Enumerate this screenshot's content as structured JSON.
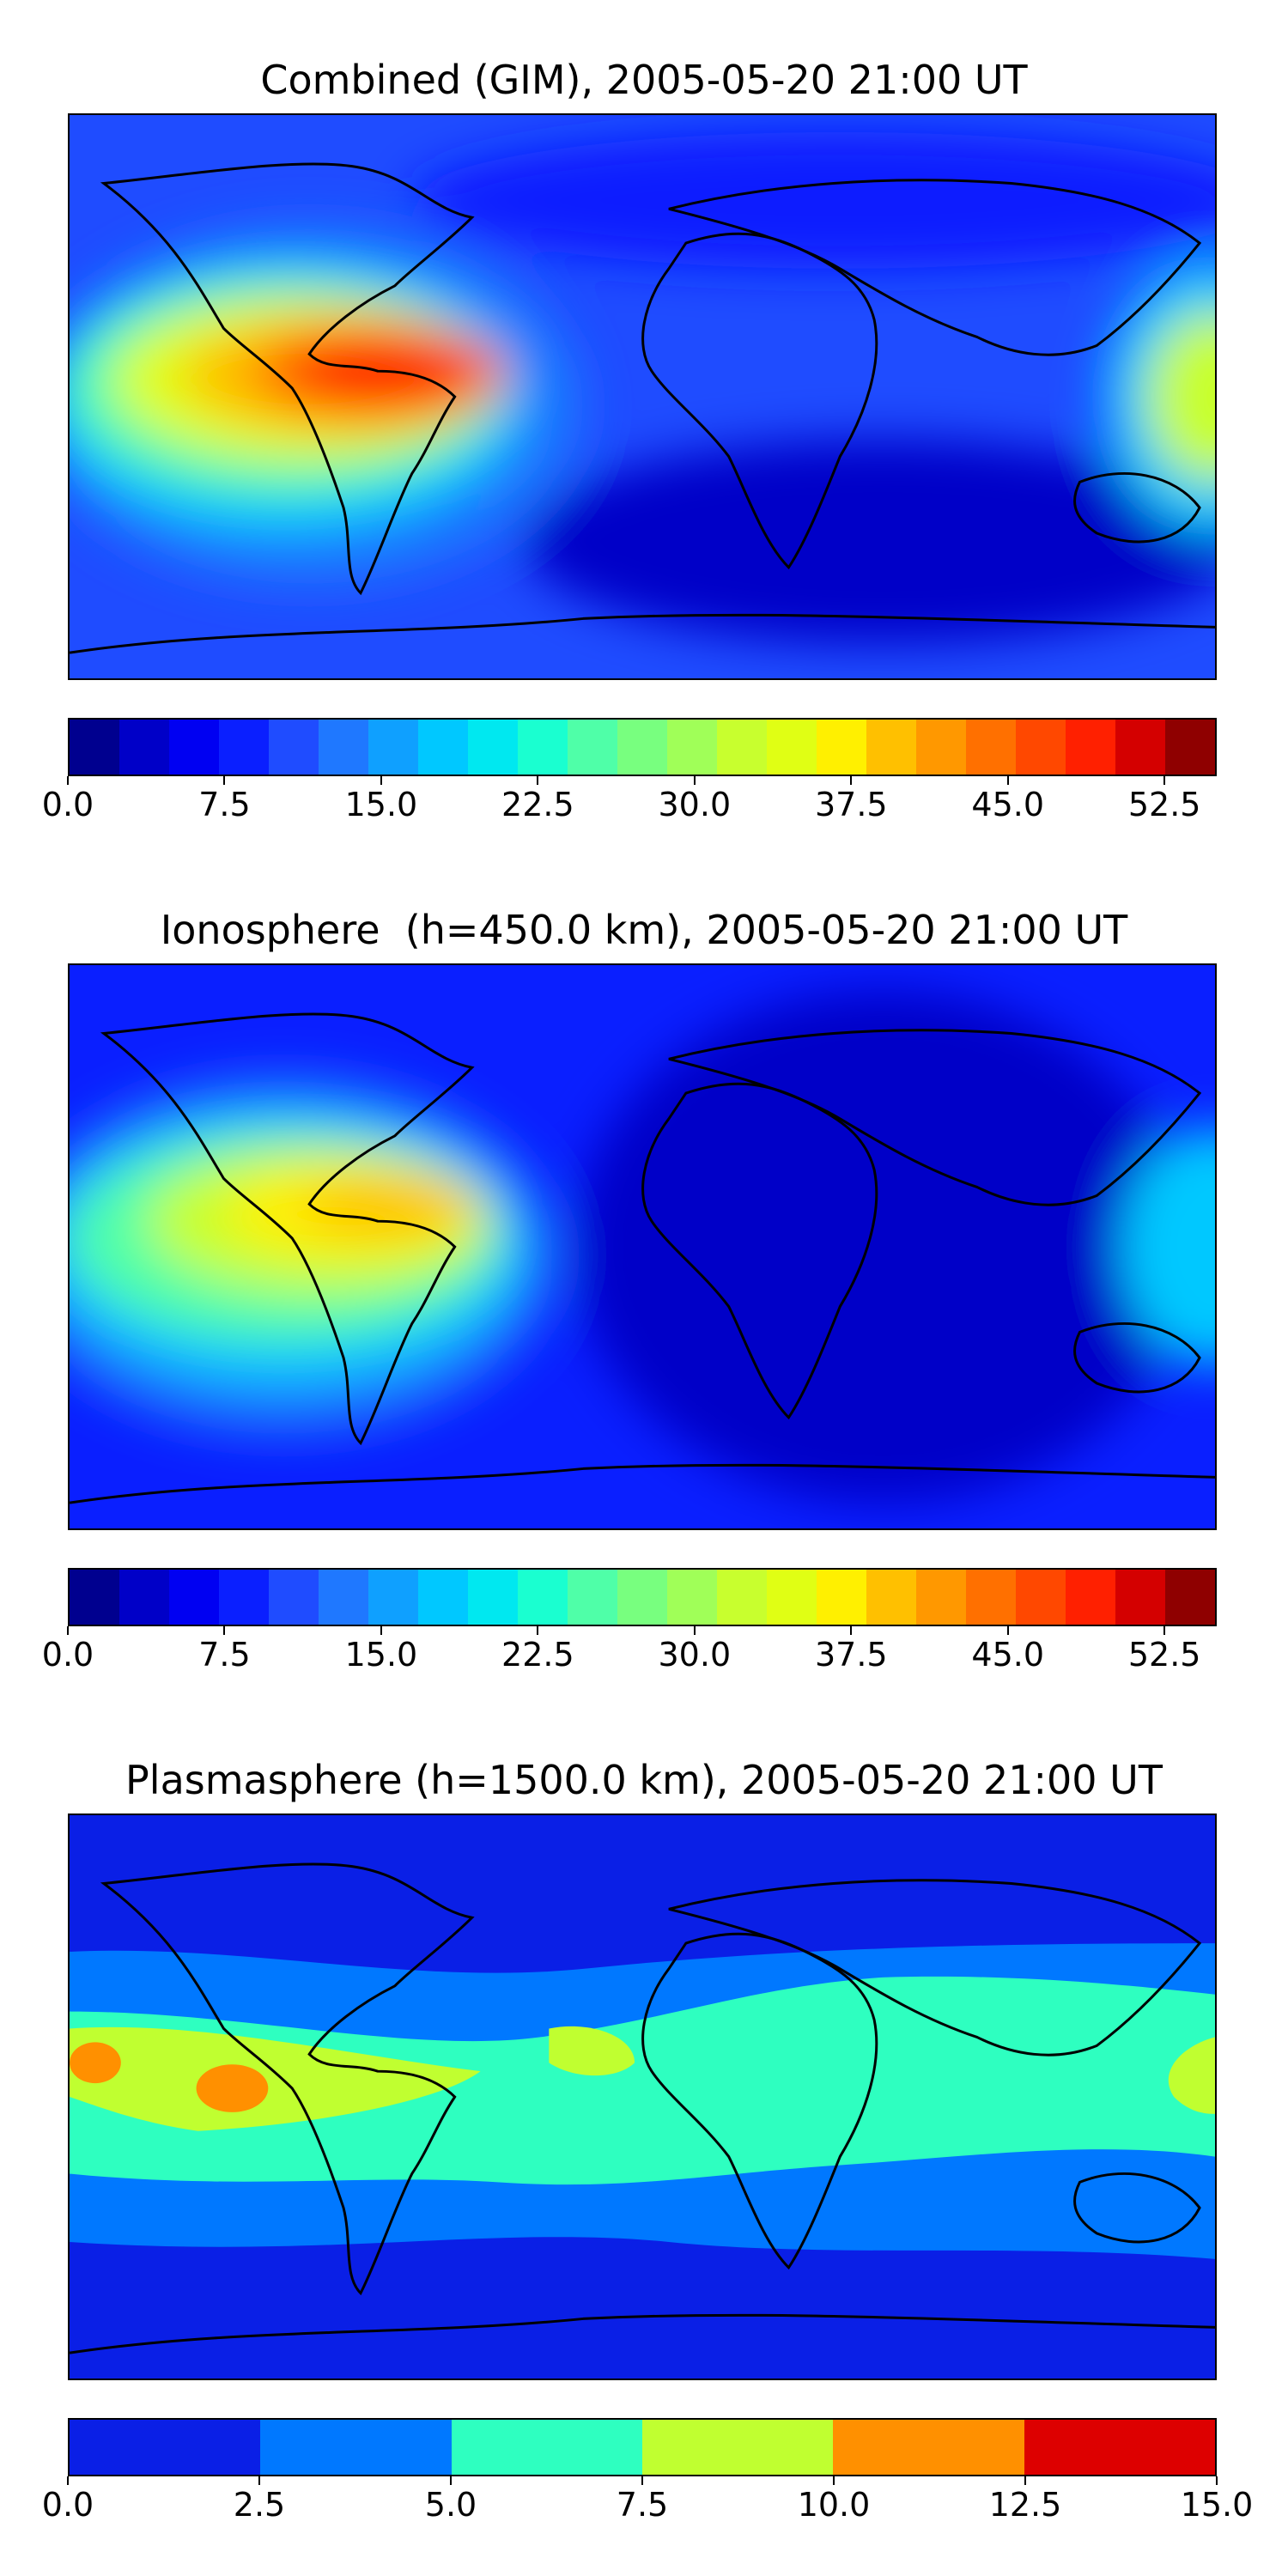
{
  "chart_data": [
    {
      "type": "heatmap",
      "title": "Combined (GIM), 2005-05-20 21:00 UT",
      "colorbar": {
        "min": 0.0,
        "max": 55.0,
        "step": 2.5,
        "ticks": [
          "0.0",
          "7.5",
          "15.0",
          "22.5",
          "30.0",
          "37.5",
          "45.0",
          "52.5"
        ],
        "tick_values": [
          0,
          7.5,
          15,
          22.5,
          30,
          37.5,
          45,
          52.5
        ],
        "colors": [
          "#00008f",
          "#0000c8",
          "#0000f2",
          "#0a1fff",
          "#1f4cff",
          "#1f78ff",
          "#0fa0ff",
          "#00c8ff",
          "#00e8f0",
          "#1affd0",
          "#4fffa8",
          "#78ff7f",
          "#a0ff58",
          "#c8ff2e",
          "#e0ff14",
          "#fff000",
          "#ffc000",
          "#ff9800",
          "#ff7000",
          "#ff4800",
          "#ff2000",
          "#d40000",
          "#8f0000"
        ]
      },
      "features": [
        {
          "label": "peak over central America / Caribbean",
          "value": 50
        },
        {
          "label": "equatorial Pacific belt",
          "value": 40
        },
        {
          "label": "western Pacific edge",
          "value": 30
        },
        {
          "label": "background",
          "value": 7.5
        }
      ]
    },
    {
      "type": "heatmap",
      "title": "Ionosphere  (h=450.0 km), 2005-05-20 21:00 UT",
      "colorbar": {
        "min": 0.0,
        "max": 55.0,
        "step": 2.5,
        "ticks": [
          "0.0",
          "7.5",
          "15.0",
          "22.5",
          "30.0",
          "37.5",
          "45.0",
          "52.5"
        ],
        "tick_values": [
          0,
          7.5,
          15,
          22.5,
          30,
          37.5,
          45,
          52.5
        ],
        "colors": [
          "#00008f",
          "#0000c8",
          "#0000f2",
          "#0a1fff",
          "#1f4cff",
          "#1f78ff",
          "#0fa0ff",
          "#00c8ff",
          "#00e8f0",
          "#1affd0",
          "#4fffa8",
          "#78ff7f",
          "#a0ff58",
          "#c8ff2e",
          "#e0ff14",
          "#fff000",
          "#ffc000",
          "#ff9800",
          "#ff7000",
          "#ff4800",
          "#ff2000",
          "#d40000",
          "#8f0000"
        ]
      },
      "features": [
        {
          "label": "peak over Caribbean",
          "value": 42
        },
        {
          "label": "equatorial Pacific belt",
          "value": 32
        },
        {
          "label": "background",
          "value": 5
        }
      ]
    },
    {
      "type": "heatmap",
      "title": "Plasmasphere (h=1500.0 km), 2005-05-20 21:00 UT",
      "colorbar": {
        "min": 0.0,
        "max": 15.0,
        "step": 2.5,
        "ticks": [
          "0.0",
          "2.5",
          "5.0",
          "7.5",
          "10.0",
          "12.5",
          "15.0"
        ],
        "tick_values": [
          0,
          2.5,
          5,
          7.5,
          10,
          12.5,
          15
        ],
        "colors": [
          "#0a1fe6",
          "#0078ff",
          "#2effc0",
          "#c0ff30",
          "#ff9000",
          "#dd0000"
        ]
      },
      "features": [
        {
          "label": "orange spots in Pacific",
          "value": 11
        },
        {
          "label": "equatorial band",
          "value": 6
        },
        {
          "label": "background",
          "value": 1.5
        }
      ]
    }
  ]
}
